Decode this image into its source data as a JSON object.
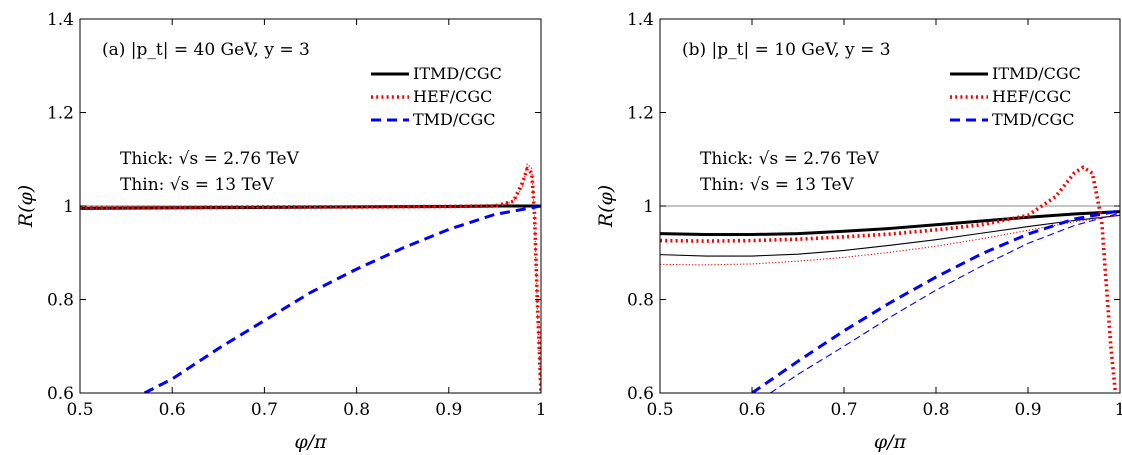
{
  "chart_data": [
    {
      "type": "line",
      "panel_label": "(a) |p_t| = 40 GeV, y = 3",
      "xlabel": "φ/π",
      "ylabel": "R(φ)",
      "xlim": [
        0.5,
        1.0
      ],
      "ylim": [
        0.6,
        1.4
      ],
      "xticks": [
        "0.5",
        "0.6",
        "0.7",
        "0.8",
        "0.9",
        "1"
      ],
      "yticks": [
        "0.6",
        "0.8",
        "1",
        "1.2",
        "1.4"
      ],
      "grid": false,
      "legend_position": "top-right",
      "annotations": [
        "Thick: √s = 2.76 TeV",
        "Thin: √s = 13 TeV"
      ],
      "reference_line_y": 1.0,
      "series": [
        {
          "name": "ITMD/CGC",
          "color": "#000000",
          "style": "solid",
          "thickness": "thick",
          "x": [
            0.5,
            0.6,
            0.7,
            0.8,
            0.9,
            0.95,
            1.0
          ],
          "y": [
            0.995,
            0.996,
            0.997,
            0.998,
            0.999,
            1.0,
            1.0
          ]
        },
        {
          "name": "ITMD/CGC",
          "color": "#000000",
          "style": "solid",
          "thickness": "thin",
          "x": [
            0.5,
            0.6,
            0.7,
            0.8,
            0.9,
            0.95,
            1.0
          ],
          "y": [
            0.995,
            0.996,
            0.997,
            0.998,
            0.999,
            1.0,
            1.0
          ]
        },
        {
          "name": "HEF/CGC",
          "color": "#ff0000",
          "style": "dotted",
          "thickness": "thick",
          "x": [
            0.5,
            0.6,
            0.7,
            0.8,
            0.9,
            0.95,
            0.97,
            0.98,
            0.985,
            0.99,
            0.993,
            0.996,
            1.0
          ],
          "y": [
            0.997,
            0.997,
            0.998,
            0.998,
            0.999,
            1.0,
            1.01,
            1.05,
            1.08,
            1.07,
            0.98,
            0.8,
            0.6
          ]
        },
        {
          "name": "HEF/CGC",
          "color": "#ff0000",
          "style": "dotted",
          "thickness": "thin",
          "x": [
            0.5,
            0.6,
            0.7,
            0.8,
            0.9,
            0.95,
            0.97,
            0.98,
            0.985,
            0.99,
            0.993,
            0.996,
            1.0
          ],
          "y": [
            0.995,
            0.996,
            0.997,
            0.998,
            0.999,
            1.0,
            1.01,
            1.04,
            1.09,
            1.08,
            0.97,
            0.78,
            0.6
          ]
        },
        {
          "name": "TMD/CGC",
          "color": "#0000ff",
          "style": "dashed",
          "thickness": "thick",
          "x": [
            0.57,
            0.6,
            0.65,
            0.7,
            0.75,
            0.8,
            0.85,
            0.9,
            0.95,
            1.0
          ],
          "y": [
            0.6,
            0.63,
            0.695,
            0.755,
            0.815,
            0.865,
            0.91,
            0.95,
            0.982,
            1.0
          ]
        }
      ]
    },
    {
      "type": "line",
      "panel_label": "(b) |p_t| = 10 GeV, y = 3",
      "xlabel": "φ/π",
      "ylabel": "R(φ)",
      "xlim": [
        0.5,
        1.0
      ],
      "ylim": [
        0.6,
        1.4
      ],
      "xticks": [
        "0.5",
        "0.6",
        "0.7",
        "0.8",
        "0.9",
        "1"
      ],
      "yticks": [
        "0.6",
        "0.8",
        "1",
        "1.2",
        "1.4"
      ],
      "grid": false,
      "legend_position": "top-right",
      "annotations": [
        "Thick: √s = 2.76 TeV",
        "Thin: √s = 13 TeV"
      ],
      "reference_line_y": 1.0,
      "series": [
        {
          "name": "ITMD/CGC",
          "color": "#000000",
          "style": "solid",
          "thickness": "thick",
          "x": [
            0.5,
            0.55,
            0.6,
            0.65,
            0.7,
            0.75,
            0.8,
            0.85,
            0.9,
            0.95,
            1.0
          ],
          "y": [
            0.941,
            0.939,
            0.939,
            0.941,
            0.946,
            0.952,
            0.96,
            0.968,
            0.976,
            0.983,
            0.988
          ]
        },
        {
          "name": "ITMD/CGC",
          "color": "#000000",
          "style": "solid",
          "thickness": "thin",
          "x": [
            0.5,
            0.55,
            0.6,
            0.65,
            0.7,
            0.75,
            0.8,
            0.85,
            0.9,
            0.95,
            1.0
          ],
          "y": [
            0.896,
            0.893,
            0.893,
            0.897,
            0.905,
            0.916,
            0.928,
            0.942,
            0.956,
            0.969,
            0.98
          ]
        },
        {
          "name": "HEF/CGC",
          "color": "#ff0000",
          "style": "dotted",
          "thickness": "thick",
          "x": [
            0.5,
            0.55,
            0.6,
            0.65,
            0.7,
            0.75,
            0.8,
            0.85,
            0.9,
            0.93,
            0.95,
            0.96,
            0.97,
            0.98,
            0.99,
            0.995
          ],
          "y": [
            0.926,
            0.925,
            0.926,
            0.929,
            0.934,
            0.94,
            0.949,
            0.96,
            0.98,
            1.02,
            1.07,
            1.083,
            1.07,
            0.97,
            0.7,
            0.6
          ]
        },
        {
          "name": "HEF/CGC",
          "color": "#ff0000",
          "style": "dotted",
          "thickness": "thin",
          "x": [
            0.5,
            0.55,
            0.6,
            0.65,
            0.7,
            0.75,
            0.8,
            0.85,
            0.9,
            0.95,
            1.0
          ],
          "y": [
            0.875,
            0.874,
            0.876,
            0.882,
            0.89,
            0.901,
            0.914,
            0.93,
            0.948,
            0.966,
            0.98
          ]
        },
        {
          "name": "TMD/CGC",
          "color": "#0000ff",
          "style": "dashed",
          "thickness": "thick",
          "x": [
            0.6,
            0.65,
            0.7,
            0.75,
            0.8,
            0.85,
            0.9,
            0.95,
            1.0
          ],
          "y": [
            0.6,
            0.668,
            0.733,
            0.793,
            0.848,
            0.898,
            0.94,
            0.972,
            0.99
          ]
        },
        {
          "name": "TMD/CGC",
          "color": "#0000ff",
          "style": "dashed",
          "thickness": "thin",
          "x": [
            0.62,
            0.65,
            0.7,
            0.75,
            0.8,
            0.85,
            0.9,
            0.95,
            1.0
          ],
          "y": [
            0.6,
            0.64,
            0.7,
            0.762,
            0.82,
            0.872,
            0.92,
            0.958,
            0.985
          ]
        }
      ]
    }
  ]
}
